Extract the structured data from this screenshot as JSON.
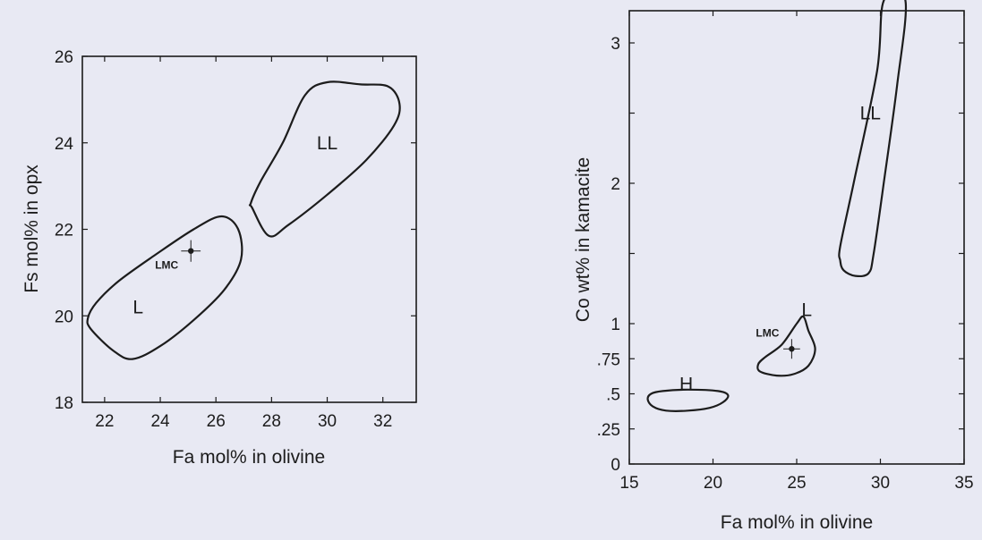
{
  "chart_data": [
    {
      "type": "scatter",
      "xlabel": "Fa mol% in olivine",
      "ylabel": "Fs mol% in opx",
      "xlim": [
        21.2,
        33.2
      ],
      "ylim": [
        18,
        26
      ],
      "xticks": [
        22,
        24,
        26,
        28,
        30,
        32
      ],
      "yticks": [
        18,
        20,
        22,
        24,
        26
      ],
      "xtick_labels": [
        "22",
        "24",
        "26",
        "28",
        "30",
        "32"
      ],
      "ytick_labels": [
        "18",
        "20",
        "22",
        "24",
        "26"
      ],
      "regions": [
        {
          "label": "L",
          "label_at": [
            23.2,
            20.2
          ],
          "outline": [
            [
              21.5,
              19.7
            ],
            [
              22.3,
              19.2
            ],
            [
              23.0,
              19.0
            ],
            [
              24.0,
              19.3
            ],
            [
              25.2,
              19.9
            ],
            [
              26.3,
              20.6
            ],
            [
              26.9,
              21.3
            ],
            [
              26.8,
              22.0
            ],
            [
              26.2,
              22.3
            ],
            [
              25.2,
              22.0
            ],
            [
              23.8,
              21.4
            ],
            [
              22.5,
              20.8
            ],
            [
              21.7,
              20.3
            ],
            [
              21.4,
              19.95
            ]
          ]
        },
        {
          "label": "LL",
          "label_at": [
            30.0,
            24.0
          ],
          "outline": [
            [
              27.3,
              22.5
            ],
            [
              27.9,
              21.85
            ],
            [
              28.6,
              22.1
            ],
            [
              30.0,
              22.8
            ],
            [
              31.4,
              23.6
            ],
            [
              32.4,
              24.4
            ],
            [
              32.6,
              24.9
            ],
            [
              32.2,
              25.3
            ],
            [
              31.2,
              25.35
            ],
            [
              30.0,
              25.4
            ],
            [
              29.2,
              25.1
            ],
            [
              28.4,
              24.0
            ],
            [
              27.6,
              23.1
            ],
            [
              27.25,
              22.6
            ]
          ]
        }
      ],
      "points": [
        {
          "label": "LMC",
          "x": 25.1,
          "y": 21.5,
          "xerr": 0.35,
          "yerr": 0.25
        }
      ]
    },
    {
      "type": "scatter",
      "xlabel": "Fa mol% in olivine",
      "ylabel": "Co wt% in kamacite",
      "xlim": [
        15,
        35
      ],
      "ylim": [
        0,
        3.3
      ],
      "xticks": [
        15,
        20,
        25,
        30,
        35
      ],
      "yticks": [
        0,
        0.25,
        0.5,
        0.75,
        1,
        2,
        3
      ],
      "xtick_labels": [
        "15",
        "20",
        "25",
        "30",
        "35"
      ],
      "ytick_labels": [
        "0",
        ".25",
        ".5",
        ".75",
        "1",
        "2",
        "3"
      ],
      "y_scale": "linear up to 1, compressed above 1",
      "regions": [
        {
          "label": "H",
          "label_at": [
            18.4,
            0.57
          ],
          "outline": [
            [
              16.1,
              0.46
            ],
            [
              16.3,
              0.5
            ],
            [
              17.0,
              0.52
            ],
            [
              18.5,
              0.53
            ],
            [
              20.3,
              0.52
            ],
            [
              20.9,
              0.49
            ],
            [
              20.6,
              0.44
            ],
            [
              19.8,
              0.4
            ],
            [
              18.5,
              0.38
            ],
            [
              17.2,
              0.38
            ],
            [
              16.4,
              0.41
            ]
          ]
        },
        {
          "label": "L",
          "label_at": [
            25.6,
            1.1
          ],
          "outline": [
            [
              22.8,
              0.66
            ],
            [
              23.8,
              0.63
            ],
            [
              24.8,
              0.64
            ],
            [
              25.7,
              0.7
            ],
            [
              26.1,
              0.82
            ],
            [
              25.7,
              0.95
            ],
            [
              25.4,
              1.05
            ],
            [
              25.0,
              1.0
            ],
            [
              24.1,
              0.85
            ],
            [
              23.1,
              0.76
            ],
            [
              22.7,
              0.71
            ]
          ]
        },
        {
          "label": "LL",
          "label_at": [
            29.4,
            2.5
          ],
          "outline": [
            [
              27.6,
              1.45
            ],
            [
              27.8,
              1.38
            ],
            [
              28.5,
              1.34
            ],
            [
              29.3,
              1.36
            ],
            [
              29.6,
              1.5
            ],
            [
              30.2,
              2.0
            ],
            [
              31.0,
              2.7
            ],
            [
              31.5,
              3.3
            ],
            [
              30.2,
              3.3
            ],
            [
              29.8,
              2.8
            ],
            [
              28.4,
              2.0
            ],
            [
              27.6,
              1.55
            ]
          ]
        }
      ],
      "points": [
        {
          "label": "LMC",
          "x": 24.7,
          "y": 0.82,
          "xerr": 0.5,
          "yerr": 0.07
        }
      ]
    }
  ]
}
